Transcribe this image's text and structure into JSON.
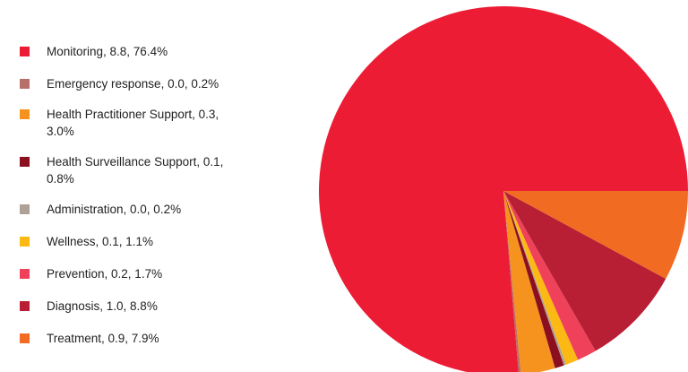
{
  "chart_data": {
    "type": "pie",
    "title": "",
    "legend_position": "left",
    "start_angle_deg": 0,
    "direction": "counterclockwise",
    "slices": [
      {
        "label": "Monitoring, 8.8, 76.4%",
        "name": "Monitoring",
        "value": 8.8,
        "percent": 76.4,
        "color": "#ec1c35"
      },
      {
        "label": "Emergency response, 0.0, 0.2%",
        "name": "Emergency response",
        "value": 0.0,
        "percent": 0.2,
        "color": "#b8706a"
      },
      {
        "label": "Health Practitioner Support, 0.3, 3.0%",
        "name": "Health Practitioner Support",
        "value": 0.3,
        "percent": 3.0,
        "color": "#f6921e"
      },
      {
        "label": "Health Surveillance Support, 0.1, 0.8%",
        "name": "Health Surveillance Support",
        "value": 0.1,
        "percent": 0.8,
        "color": "#8c0f1f"
      },
      {
        "label": "Administration, 0.0, 0.2%",
        "name": "Administration",
        "value": 0.0,
        "percent": 0.2,
        "color": "#b0a197"
      },
      {
        "label": "Wellness, 0.1, 1.1%",
        "name": "Wellness",
        "value": 0.1,
        "percent": 1.1,
        "color": "#fdb913"
      },
      {
        "label": "Prevention, 0.2, 1.7%",
        "name": "Prevention",
        "value": 0.2,
        "percent": 1.7,
        "color": "#ef4159"
      },
      {
        "label": "Diagnosis, 1.0, 8.8%",
        "name": "Diagnosis",
        "value": 1.0,
        "percent": 8.8,
        "color": "#b81f34"
      },
      {
        "label": "Treatment, 0.9, 7.9%",
        "name": "Treatment",
        "value": 0.9,
        "percent": 7.9,
        "color": "#f26b23"
      }
    ]
  }
}
